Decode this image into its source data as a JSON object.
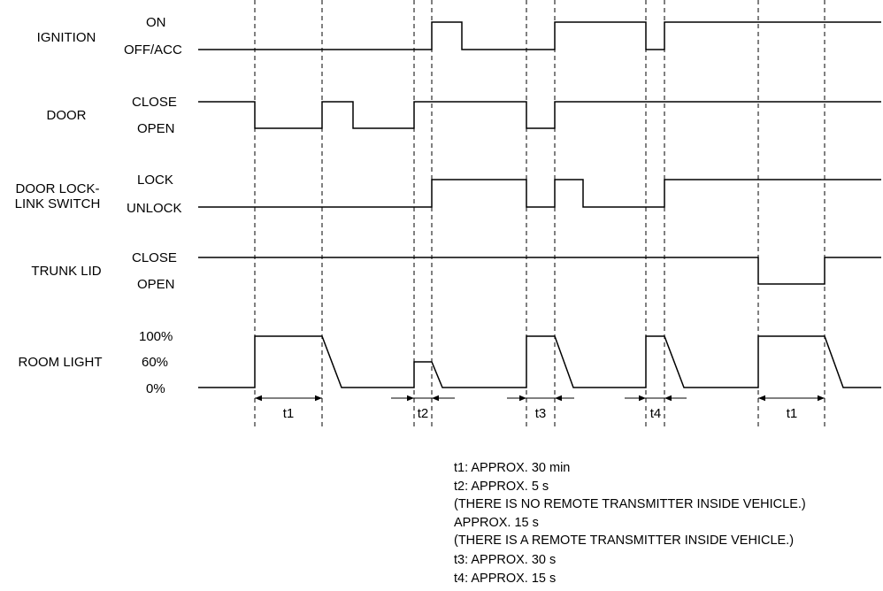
{
  "signals": [
    {
      "name": "IGNITION",
      "levels": [
        "ON",
        "OFF/ACC"
      ]
    },
    {
      "name": "DOOR",
      "levels": [
        "CLOSE",
        "OPEN"
      ]
    },
    {
      "name": "DOOR LOCK-\nLINK SWITCH",
      "levels": [
        "LOCK",
        "UNLOCK"
      ]
    },
    {
      "name": "TRUNK LID",
      "levels": [
        "CLOSE",
        "OPEN"
      ]
    },
    {
      "name": "ROOM LIGHT",
      "levels": [
        "100%",
        "60%",
        "0%"
      ]
    }
  ],
  "intervals": [
    "t1",
    "t2",
    "t3",
    "t4",
    "t1"
  ],
  "notes": [
    "t1: APPROX. 30 min",
    "t2: APPROX. 5 s",
    "(THERE IS NO REMOTE TRANSMITTER INSIDE VEHICLE.)",
    "APPROX. 15 s",
    "(THERE IS A REMOTE TRANSMITTER INSIDE VEHICLE.)",
    "t3: APPROX. 30 s",
    "t4: APPROX. 15 s"
  ]
}
